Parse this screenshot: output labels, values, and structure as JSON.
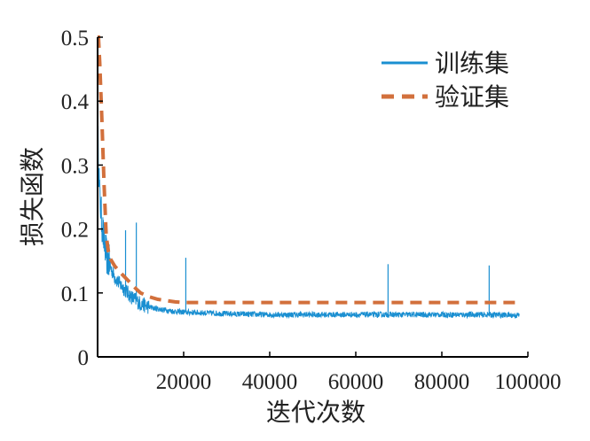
{
  "chart_data": {
    "type": "line",
    "xlabel": "迭代次数",
    "ylabel": "损失函数",
    "xlim": [
      0,
      100000
    ],
    "ylim": [
      0,
      0.5
    ],
    "x_ticks": [
      {
        "value": 20000,
        "label": "20000"
      },
      {
        "value": 40000,
        "label": "40000"
      },
      {
        "value": 60000,
        "label": "60000"
      },
      {
        "value": 80000,
        "label": "80000"
      },
      {
        "value": 100000,
        "label": "100000"
      }
    ],
    "y_ticks": [
      {
        "value": 0,
        "label": "0"
      },
      {
        "value": 0.1,
        "label": "0.1"
      },
      {
        "value": 0.2,
        "label": "0.2"
      },
      {
        "value": 0.3,
        "label": "0.3"
      },
      {
        "value": 0.4,
        "label": "0.4"
      },
      {
        "value": 0.5,
        "label": "0.5"
      }
    ],
    "grid": false,
    "legend_position": "top-right",
    "series": [
      {
        "name": "训练集",
        "color": "#1a8fd1",
        "style": "solid",
        "x": [
          0,
          500,
          1000,
          1500,
          2000,
          3000,
          4000,
          5000,
          6000,
          7000,
          8000,
          9000,
          10000,
          12000,
          14000,
          16000,
          18000,
          20000,
          24000,
          28000,
          32000,
          40000,
          50000,
          60000,
          70000,
          80000,
          90000,
          98000
        ],
        "y": [
          0.36,
          0.25,
          0.21,
          0.18,
          0.16,
          0.14,
          0.125,
          0.115,
          0.108,
          0.1,
          0.093,
          0.088,
          0.083,
          0.078,
          0.075,
          0.073,
          0.071,
          0.07,
          0.069,
          0.068,
          0.067,
          0.066,
          0.066,
          0.066,
          0.066,
          0.066,
          0.066,
          0.065
        ],
        "spikes": [
          {
            "x": 6500,
            "y": 0.198
          },
          {
            "x": 9000,
            "y": 0.21
          },
          {
            "x": 20500,
            "y": 0.155
          },
          {
            "x": 67500,
            "y": 0.145
          },
          {
            "x": 91000,
            "y": 0.143
          }
        ]
      },
      {
        "name": "验证集",
        "color": "#d2703c",
        "style": "dashed",
        "x": [
          0,
          200,
          500,
          1000,
          1500,
          2000,
          2500,
          3000,
          4000,
          5000,
          6000,
          7000,
          8000,
          9000,
          10000,
          12000,
          14000,
          16000,
          18000,
          20000,
          30000,
          60000,
          98000
        ],
        "y": [
          0.5,
          0.5,
          0.46,
          0.37,
          0.27,
          0.19,
          0.165,
          0.153,
          0.142,
          0.134,
          0.127,
          0.12,
          0.113,
          0.106,
          0.1,
          0.094,
          0.09,
          0.088,
          0.086,
          0.085,
          0.085,
          0.085,
          0.085
        ]
      }
    ]
  }
}
